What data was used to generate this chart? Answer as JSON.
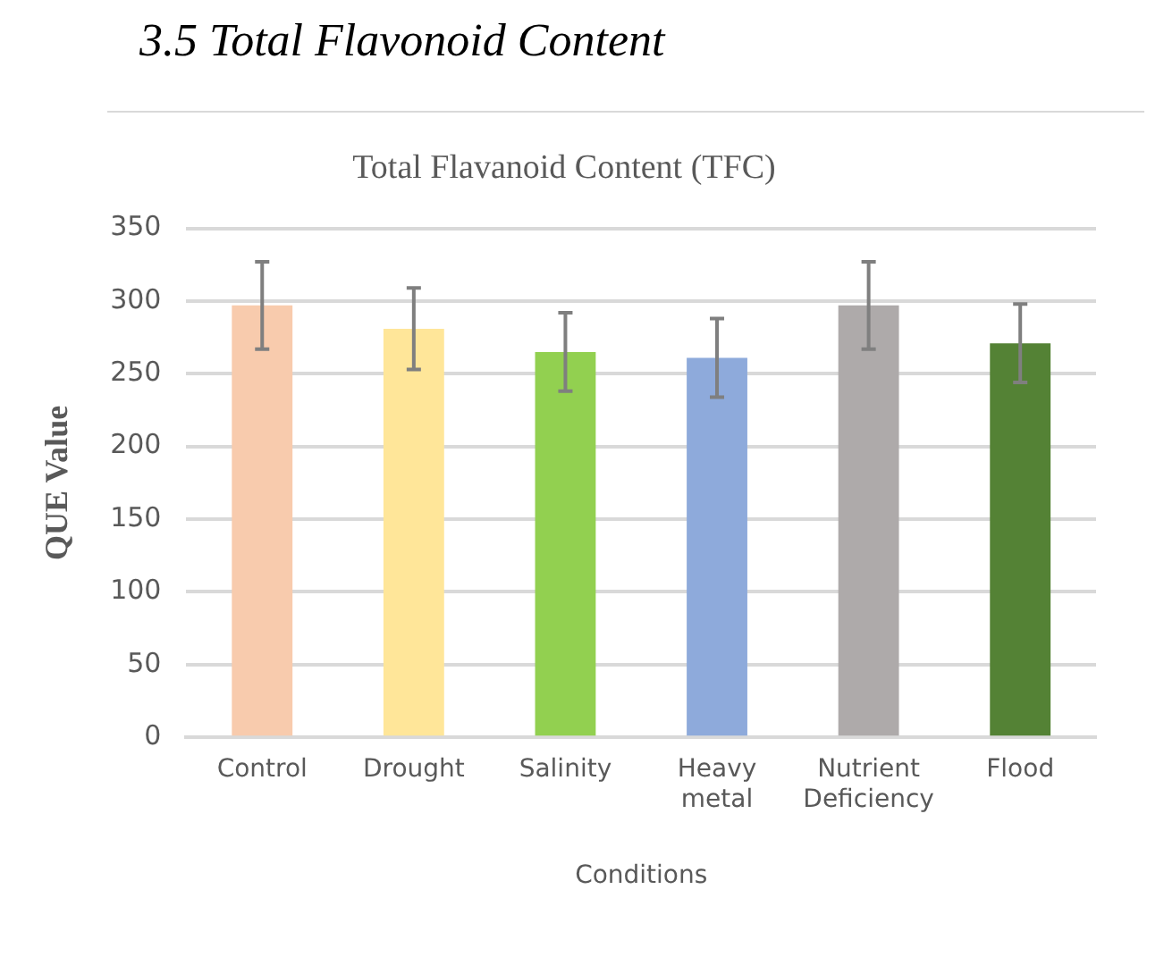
{
  "chart_data": {
    "type": "bar",
    "title": "Total Flavanoid Content (TFC)",
    "xlabel": "Conditions",
    "ylabel": "QUE Value",
    "annotations": [
      "3.5 Total Flavonoid Content"
    ],
    "categories": [
      "Control",
      "Drought",
      "Salinity",
      "Heavy metal",
      "Nutrient Deficiency",
      "Flood"
    ],
    "values": [
      297,
      281,
      265,
      261,
      297,
      271
    ],
    "errors": [
      30,
      28,
      27,
      27,
      30,
      27
    ],
    "colors": [
      "#f8cbad",
      "#ffe699",
      "#92d050",
      "#8eaadb",
      "#aeaaaa",
      "#548235"
    ],
    "ylim": [
      0,
      350
    ],
    "yticks": [
      0,
      50,
      100,
      150,
      200,
      250,
      300,
      350
    ],
    "grid": "y",
    "legend": false
  }
}
